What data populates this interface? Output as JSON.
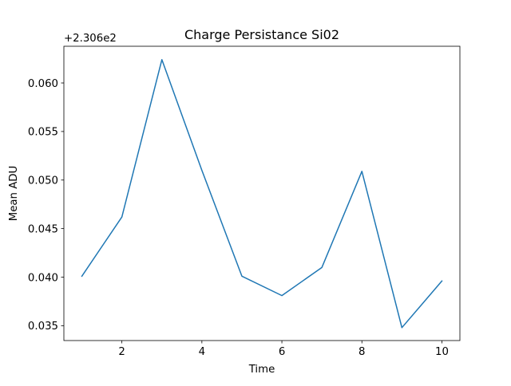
{
  "chart_data": {
    "type": "line",
    "title": "Charge Persistance Si02",
    "xlabel": "Time",
    "ylabel": "Mean ADU",
    "offset_text": "+2.306e2",
    "x": [
      1,
      2,
      3,
      4,
      5,
      6,
      7,
      8,
      9,
      10
    ],
    "series": [
      {
        "values": [
          0.0401,
          0.0462,
          0.0624,
          0.051,
          0.0401,
          0.0381,
          0.041,
          0.0509,
          0.0348,
          0.0396
        ],
        "color": "#1f77b4"
      }
    ],
    "xlim": [
      0.55,
      10.45
    ],
    "ylim": [
      0.03347,
      0.06378
    ],
    "xticks": [
      2,
      4,
      6,
      8,
      10
    ],
    "xtick_labels": [
      "2",
      "4",
      "6",
      "8",
      "10"
    ],
    "yticks": [
      0.035,
      0.04,
      0.045,
      0.05,
      0.055,
      0.06
    ],
    "ytick_labels": [
      "0.035",
      "0.040",
      "0.045",
      "0.050",
      "0.055",
      "0.060"
    ],
    "grid": false,
    "legend": "none"
  }
}
